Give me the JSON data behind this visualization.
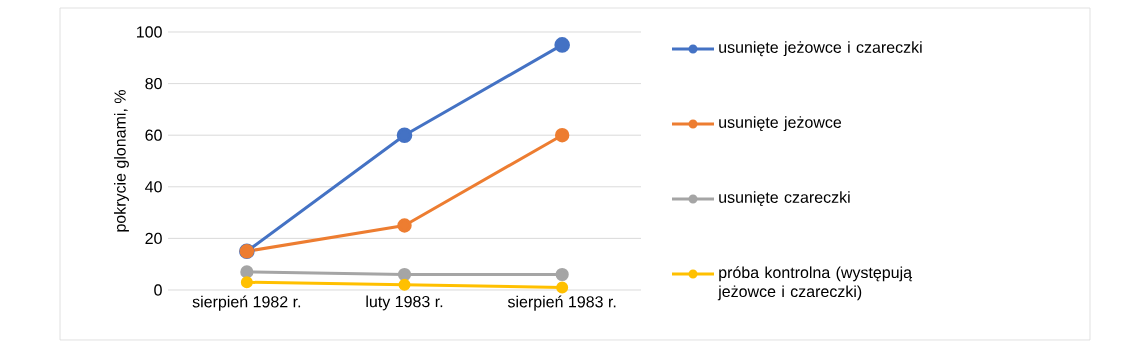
{
  "chart_data": {
    "type": "line",
    "ylabel": "pokrycie glonami, %",
    "categories": [
      "sierpień 1982 r.",
      "luty 1983 r.",
      "sierpień 1983 r."
    ],
    "series": [
      {
        "name": "usunięte jeżowce i czareczki",
        "color": "#4472c4",
        "values": [
          15,
          60,
          95
        ]
      },
      {
        "name": "usunięte jeżowce",
        "color": "#ed7d31",
        "values": [
          15,
          25,
          60
        ]
      },
      {
        "name": "usunięte czareczki",
        "color": "#a5a5a5",
        "values": [
          7,
          6,
          6
        ]
      },
      {
        "name": "próba kontrolna (występują jeżowce i czareczki)",
        "color": "#ffc000",
        "values": [
          3,
          2,
          1
        ]
      }
    ],
    "ylim": [
      0,
      100
    ],
    "yticks": [
      0,
      20,
      40,
      60,
      80,
      100
    ],
    "grid": "y",
    "legend": "right",
    "marker": "circle",
    "line_style": "solid"
  }
}
